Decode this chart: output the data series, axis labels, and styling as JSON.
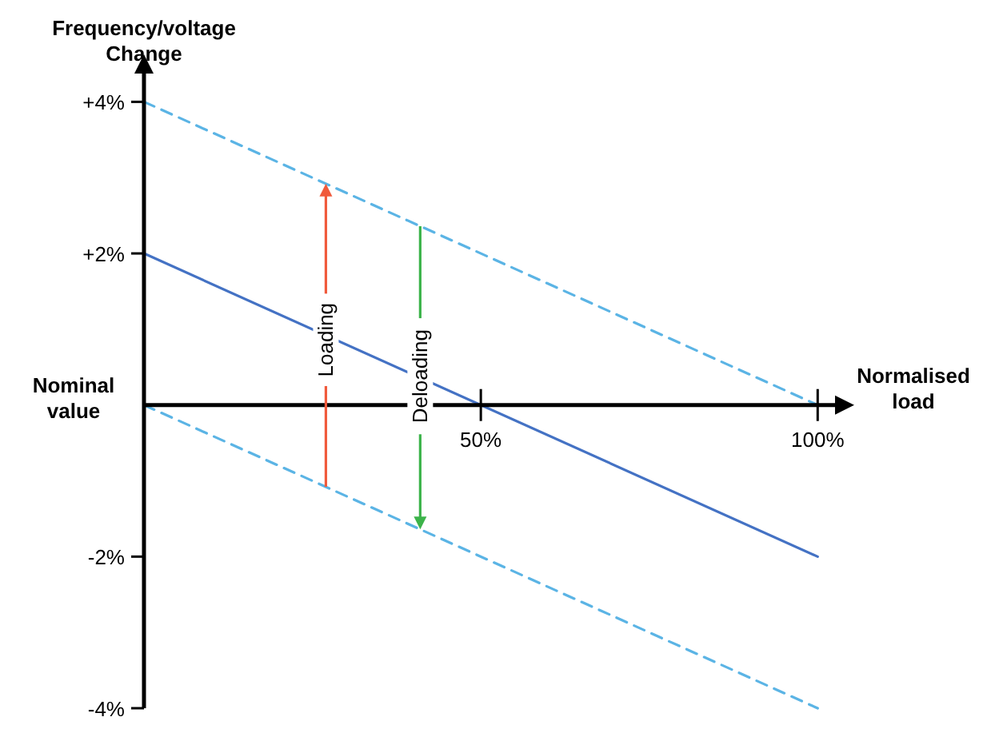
{
  "chart_data": {
    "type": "line",
    "xlabel": "Normalised load",
    "ylabel": "Frequency/voltage Change",
    "annotations": [
      "Nominal value",
      {
        "text": "Loading",
        "x": 27,
        "y": 0.86
      },
      {
        "text": "Deloading",
        "x": 41,
        "y": 0.38
      }
    ],
    "xlim": [
      0,
      104
    ],
    "ylim": [
      -4,
      4.5
    ],
    "xticks": [
      {
        "value": 50,
        "label": "50%"
      },
      {
        "value": 100,
        "label": "100%"
      }
    ],
    "yticks": [
      {
        "value": -4,
        "label": "-4%"
      },
      {
        "value": -2,
        "label": "-2%"
      },
      {
        "value": 2,
        "label": "+2%"
      },
      {
        "value": 4,
        "label": "+4%"
      }
    ],
    "marker": "none",
    "line_style": "solid",
    "x": [
      0,
      100
    ],
    "series": [
      {
        "color": "#4472c4",
        "values": [
          2,
          -2
        ]
      },
      {
        "color": "#5bb4e5",
        "values": [
          4,
          0
        ],
        "line_style": "dashed"
      },
      {
        "color": "#5bb4e5",
        "values": [
          0,
          -4
        ],
        "line_style": "dashed"
      }
    ]
  }
}
